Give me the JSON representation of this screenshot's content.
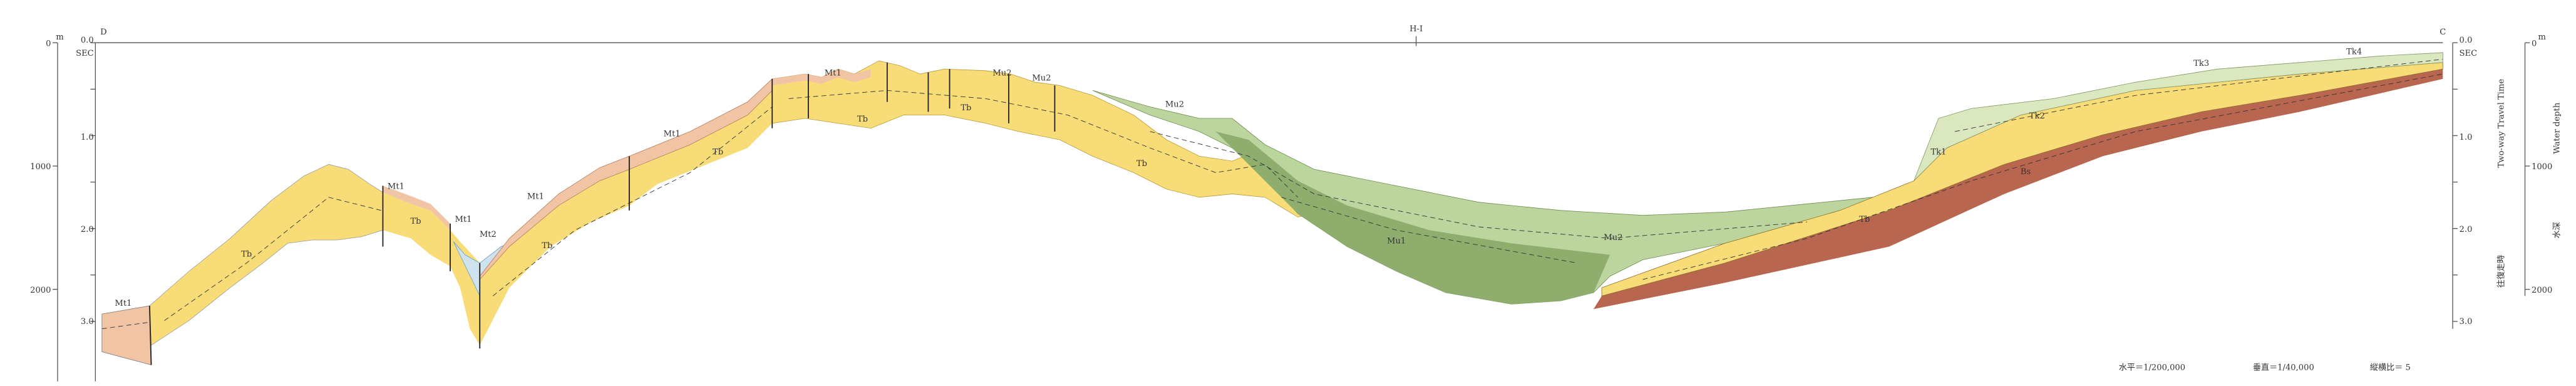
{
  "header": {
    "left_end": "D",
    "center": "H-I",
    "right_end": "C"
  },
  "left_axis": {
    "time_unit": "SEC",
    "time_ticks": [
      "0.0",
      "1.0",
      "2.0",
      "3.0"
    ],
    "depth_ticks": [
      "0",
      "1000",
      "2000"
    ],
    "depth_unit": "m"
  },
  "right_axis": {
    "time_unit": "SEC",
    "time_ticks": [
      "0.0",
      "1.0",
      "2.0",
      "3.0"
    ],
    "depth_ticks": [
      "0",
      "1000",
      "2000"
    ],
    "depth_unit": "m",
    "time_title": "Two-way Travel Time",
    "time_title_ja": "往復走時",
    "depth_title": "Water depth",
    "depth_title_ja": "水深"
  },
  "units": [
    "Mt1",
    "Tb",
    "Mt1",
    "Tb",
    "Mt1",
    "Mt2",
    "Tb",
    "Mt1",
    "Mt1",
    "Tb",
    "Mt1",
    "Tb",
    "Mu2",
    "Tb",
    "Mu2",
    "Mu2",
    "Tb",
    "Mu1",
    "Mu2",
    "Tb",
    "Tk1",
    "Tk2",
    "Tk3",
    "Tk4",
    "Bs"
  ],
  "scale": {
    "horizontal": "水平＝1/200,000",
    "vertical": "垂直＝1/40,000",
    "ratio": "縦横比＝ 5"
  }
}
